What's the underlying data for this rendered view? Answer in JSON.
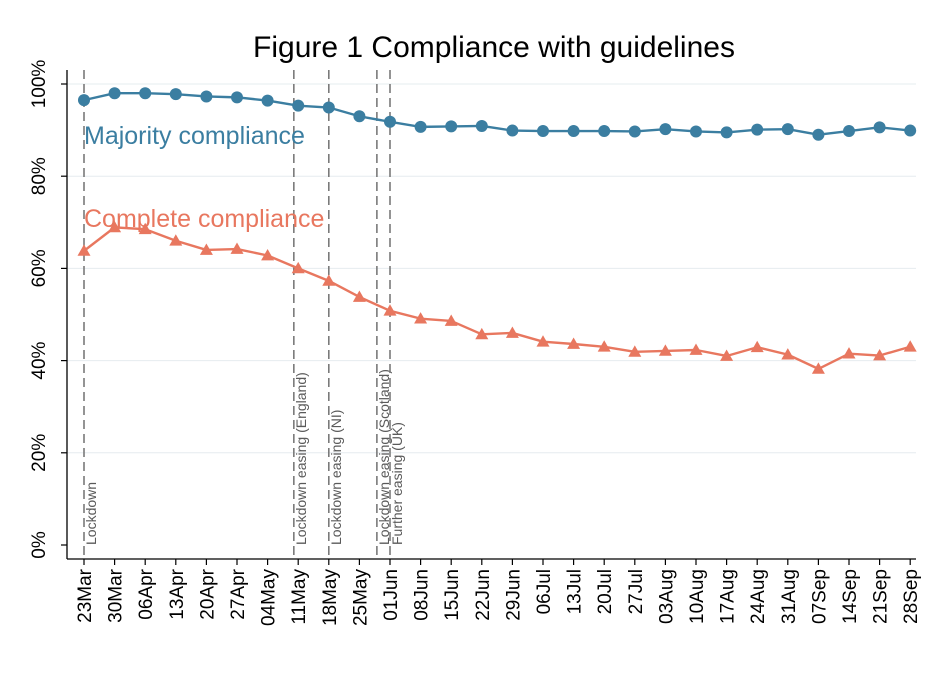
{
  "chart_data": {
    "type": "line",
    "title": "Figure 1 Compliance with guidelines",
    "xlabel": "",
    "ylabel": "",
    "categories": [
      "23Mar",
      "30Mar",
      "06Apr",
      "13Apr",
      "20Apr",
      "27Apr",
      "04May",
      "11May",
      "18May",
      "25May",
      "01Jun",
      "08Jun",
      "15Jun",
      "22Jun",
      "29Jun",
      "06Jul",
      "13Jul",
      "20Jul",
      "27Jul",
      "03Aug",
      "10Aug",
      "17Aug",
      "24Aug",
      "31Aug",
      "07Sep",
      "14Sep",
      "21Sep",
      "28Sep"
    ],
    "ylim": [
      0,
      100
    ],
    "yticks": [
      0,
      20,
      40,
      60,
      80,
      100
    ],
    "ytick_labels": [
      "0%",
      "20%",
      "40%",
      "60%",
      "80%",
      "100%"
    ],
    "grid": true,
    "series": [
      {
        "name": "Majority compliance",
        "color": "#3b7ea1",
        "marker": "circle",
        "values": [
          96.5,
          98.0,
          98.0,
          97.8,
          97.3,
          97.1,
          96.4,
          95.3,
          94.9,
          93.0,
          91.8,
          90.7,
          90.8,
          90.9,
          89.9,
          89.8,
          89.8,
          89.8,
          89.7,
          90.2,
          89.7,
          89.5,
          90.1,
          90.2,
          89.0,
          89.8,
          90.6,
          89.9
        ]
      },
      {
        "name": "Complete compliance",
        "color": "#e8775f",
        "marker": "triangle",
        "values": [
          63.8,
          68.9,
          68.5,
          66.0,
          64.0,
          64.2,
          62.8,
          60.0,
          57.3,
          53.8,
          50.8,
          49.1,
          48.6,
          45.7,
          46.0,
          44.1,
          43.6,
          43.0,
          41.9,
          42.1,
          42.3,
          41.0,
          42.9,
          41.3,
          38.2,
          41.5,
          41.1,
          43.0
        ]
      }
    ],
    "events": [
      {
        "label": "Lockdown",
        "date": "23Mar"
      },
      {
        "label": "Lockdown easing (England)",
        "date": "10May"
      },
      {
        "label": "Lockdown easing (NI)",
        "date": "18May"
      },
      {
        "label": "Lockdown easing (Scotland)",
        "date": "29May"
      },
      {
        "label": "Further easing (UK)",
        "date": "01Jun"
      }
    ]
  }
}
